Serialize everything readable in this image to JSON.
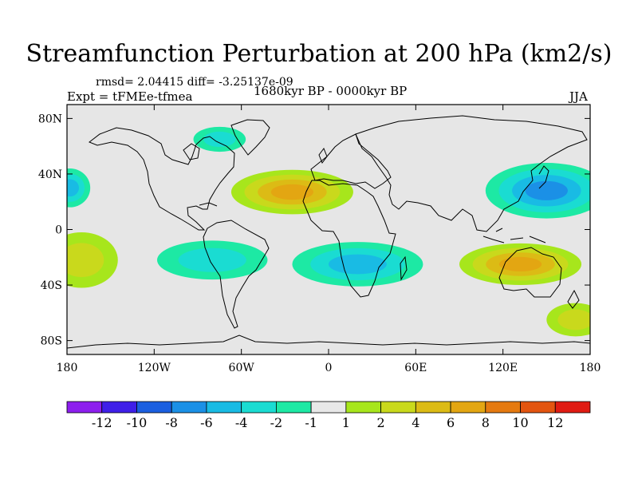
{
  "title": "Streamfunction Perturbation at 200 hPa (km2/s)",
  "stats": "rmsd= 2.04415 diff= -3.25137e-09",
  "experiment": "Expt = tFMEe-tfmea",
  "period": "1680kyr BP - 0000kyr BP",
  "season": "JJA",
  "map": {
    "lat_ticks": [
      {
        "value": 80,
        "label": "80N"
      },
      {
        "value": 40,
        "label": "40N"
      },
      {
        "value": 0,
        "label": "0"
      },
      {
        "value": -40,
        "label": "40S"
      },
      {
        "value": -80,
        "label": "80S"
      }
    ],
    "lon_ticks": [
      {
        "value": -180,
        "label": "180"
      },
      {
        "value": -120,
        "label": "120W"
      },
      {
        "value": -60,
        "label": "60W"
      },
      {
        "value": 0,
        "label": "0"
      },
      {
        "value": 60,
        "label": "60E"
      },
      {
        "value": 120,
        "label": "120E"
      },
      {
        "value": 180,
        "label": "180"
      }
    ],
    "background_color": "#e6e6e6",
    "features": [
      {
        "name": "anomaly-north-atlantic-high",
        "lon": -25,
        "lat": 27,
        "rlon": 42,
        "rlat": 16,
        "value": 6
      },
      {
        "name": "anomaly-north-pacific-low",
        "lon": 150,
        "lat": 28,
        "rlon": 42,
        "rlat": 20,
        "value": -6
      },
      {
        "name": "anomaly-east-pacific-low",
        "lon": -178,
        "lat": 30,
        "rlon": 14,
        "rlat": 14,
        "value": -4
      },
      {
        "name": "anomaly-australia-high",
        "lon": 132,
        "lat": -25,
        "rlon": 42,
        "rlat": 15,
        "value": 6
      },
      {
        "name": "anomaly-south-atlantic-africa-low",
        "lon": 20,
        "lat": -25,
        "rlon": 45,
        "rlat": 16,
        "value": -4
      },
      {
        "name": "anomaly-south-america-low",
        "lon": -80,
        "lat": -22,
        "rlon": 38,
        "rlat": 14,
        "value": -3
      },
      {
        "name": "anomaly-southeast-pacific-high",
        "lon": -170,
        "lat": -22,
        "rlon": 25,
        "rlat": 20,
        "value": 3
      },
      {
        "name": "anomaly-canada-low",
        "lon": -75,
        "lat": 65,
        "rlon": 18,
        "rlat": 9,
        "value": -2
      },
      {
        "name": "anomaly-southwest-pacific-high",
        "lon": 170,
        "lat": -65,
        "rlon": 20,
        "rlat": 12,
        "value": 3
      }
    ]
  },
  "colorbar": {
    "colors": [
      "#8d1eee",
      "#3f1fe8",
      "#1b5fe0",
      "#1b90e6",
      "#19bbe4",
      "#1adcd2",
      "#1de9a4",
      "#e8e8e8",
      "#a7e61c",
      "#c9d91c",
      "#dcbb15",
      "#e3a612",
      "#e57a10",
      "#e35510",
      "#e01b12"
    ],
    "labels": [
      "-12",
      "-10",
      "-8",
      "-6",
      "-4",
      "-2",
      "-1",
      "1",
      "2",
      "4",
      "6",
      "8",
      "10",
      "12"
    ]
  }
}
